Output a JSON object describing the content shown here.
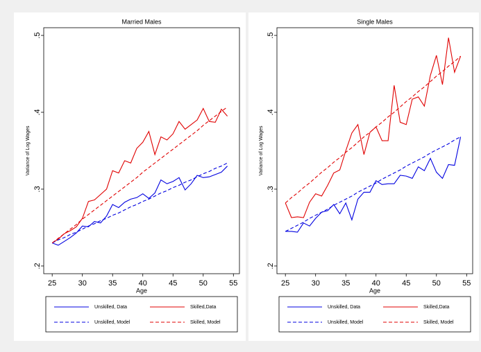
{
  "chart_data": [
    {
      "type": "line",
      "title": "Married Males",
      "x_label": "Age",
      "y_label": "Variance of Log Wages",
      "x": [
        25,
        26,
        27,
        28,
        29,
        30,
        31,
        32,
        33,
        34,
        35,
        36,
        37,
        38,
        39,
        40,
        41,
        42,
        43,
        44,
        45,
        46,
        47,
        48,
        49,
        50,
        51,
        52,
        53,
        54
      ],
      "xlim": [
        23.6,
        56
      ],
      "xticks": [
        25,
        30,
        35,
        40,
        45,
        50,
        55
      ],
      "ylim": [
        0.19,
        0.51
      ],
      "yticks": [
        {
          "value": 0.2,
          "label": ".2"
        },
        {
          "value": 0.3,
          "label": ".3"
        },
        {
          "value": 0.4,
          "label": ".4"
        },
        {
          "value": 0.5,
          "label": ".5"
        }
      ],
      "legend": "bottom",
      "series": [
        {
          "name": "Unskilled, Data",
          "color": "#0000e0",
          "style": "solid",
          "values": [
            0.23,
            0.227,
            0.232,
            0.237,
            0.243,
            0.252,
            0.251,
            0.258,
            0.256,
            0.265,
            0.28,
            0.276,
            0.283,
            0.287,
            0.289,
            0.294,
            0.288,
            0.295,
            0.312,
            0.307,
            0.31,
            0.315,
            0.299,
            0.307,
            0.318,
            0.315,
            0.316,
            0.319,
            0.322,
            0.33
          ]
        },
        {
          "name": "Skilled,Data",
          "color": "#e00000",
          "style": "solid",
          "values": [
            0.23,
            0.235,
            0.242,
            0.246,
            0.251,
            0.262,
            0.284,
            0.286,
            0.293,
            0.3,
            0.324,
            0.321,
            0.337,
            0.334,
            0.353,
            0.361,
            0.375,
            0.345,
            0.368,
            0.364,
            0.372,
            0.388,
            0.378,
            0.384,
            0.39,
            0.405,
            0.388,
            0.387,
            0.404,
            0.395
          ]
        },
        {
          "name": "Unskilled, Model",
          "color": "#0000e0",
          "style": "dashed",
          "values": [
            0.23,
            0.234,
            0.237,
            0.241,
            0.244,
            0.248,
            0.252,
            0.255,
            0.259,
            0.262,
            0.266,
            0.269,
            0.273,
            0.277,
            0.28,
            0.284,
            0.287,
            0.291,
            0.295,
            0.298,
            0.302,
            0.305,
            0.309,
            0.312,
            0.316,
            0.32,
            0.323,
            0.327,
            0.33,
            0.334
          ]
        },
        {
          "name": "Skilled, Model",
          "color": "#e00000",
          "style": "dashed",
          "values": [
            0.23,
            0.236,
            0.242,
            0.248,
            0.254,
            0.261,
            0.267,
            0.273,
            0.279,
            0.285,
            0.291,
            0.297,
            0.303,
            0.309,
            0.315,
            0.322,
            0.328,
            0.334,
            0.34,
            0.346,
            0.352,
            0.358,
            0.364,
            0.37,
            0.376,
            0.383,
            0.389,
            0.395,
            0.401,
            0.407
          ]
        }
      ]
    },
    {
      "type": "line",
      "title": "Single Males",
      "x_label": "Age",
      "y_label": "Variance of Log Wages",
      "x": [
        25,
        26,
        27,
        28,
        29,
        30,
        31,
        32,
        33,
        34,
        35,
        36,
        37,
        38,
        39,
        40,
        41,
        42,
        43,
        44,
        45,
        46,
        47,
        48,
        49,
        50,
        51,
        52,
        53,
        54
      ],
      "xlim": [
        23.6,
        56
      ],
      "xticks": [
        25,
        30,
        35,
        40,
        45,
        50,
        55
      ],
      "ylim": [
        0.19,
        0.51
      ],
      "yticks": [
        {
          "value": 0.2,
          "label": ".2"
        },
        {
          "value": 0.3,
          "label": ".3"
        },
        {
          "value": 0.4,
          "label": ".4"
        },
        {
          "value": 0.5,
          "label": ".5"
        }
      ],
      "legend": "bottom",
      "series": [
        {
          "name": "Unskilled, Data",
          "color": "#0000e0",
          "style": "solid",
          "values": [
            0.245,
            0.245,
            0.244,
            0.256,
            0.252,
            0.262,
            0.27,
            0.272,
            0.28,
            0.268,
            0.282,
            0.26,
            0.287,
            0.296,
            0.296,
            0.311,
            0.306,
            0.307,
            0.307,
            0.318,
            0.317,
            0.314,
            0.329,
            0.324,
            0.34,
            0.322,
            0.314,
            0.332,
            0.331,
            0.368
          ]
        },
        {
          "name": "Skilled,Data",
          "color": "#e00000",
          "style": "solid",
          "values": [
            0.282,
            0.263,
            0.264,
            0.263,
            0.283,
            0.294,
            0.291,
            0.305,
            0.321,
            0.325,
            0.35,
            0.373,
            0.384,
            0.345,
            0.374,
            0.381,
            0.363,
            0.363,
            0.435,
            0.387,
            0.384,
            0.417,
            0.42,
            0.408,
            0.448,
            0.474,
            0.436,
            0.497,
            0.452,
            0.473
          ]
        },
        {
          "name": "Unskilled, Model",
          "color": "#0000e0",
          "style": "dashed",
          "values": [
            0.245,
            0.249,
            0.253,
            0.257,
            0.262,
            0.266,
            0.27,
            0.274,
            0.279,
            0.283,
            0.287,
            0.291,
            0.296,
            0.3,
            0.304,
            0.308,
            0.313,
            0.317,
            0.321,
            0.325,
            0.33,
            0.334,
            0.338,
            0.342,
            0.347,
            0.351,
            0.355,
            0.359,
            0.364,
            0.368
          ]
        },
        {
          "name": "Skilled, Model",
          "color": "#e00000",
          "style": "dashed",
          "values": [
            0.282,
            0.289,
            0.295,
            0.302,
            0.308,
            0.315,
            0.322,
            0.328,
            0.335,
            0.341,
            0.348,
            0.354,
            0.361,
            0.368,
            0.374,
            0.381,
            0.387,
            0.394,
            0.4,
            0.407,
            0.414,
            0.42,
            0.427,
            0.433,
            0.44,
            0.447,
            0.453,
            0.46,
            0.466,
            0.473
          ]
        }
      ]
    }
  ]
}
